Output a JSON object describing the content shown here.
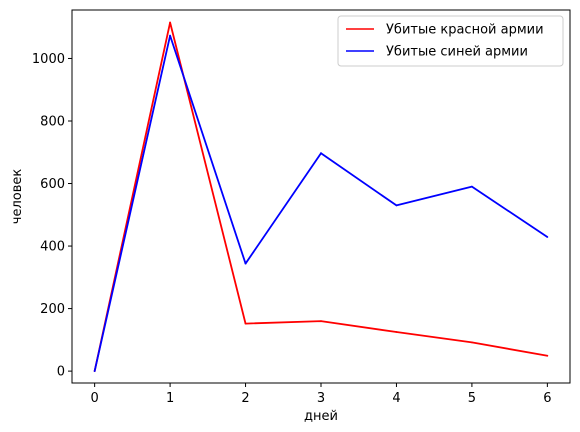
{
  "chart_data": {
    "type": "line",
    "title": "",
    "xlabel": "дней",
    "ylabel": "человек",
    "x": [
      0,
      1,
      2,
      3,
      4,
      5,
      6
    ],
    "xlim": [
      -0.3,
      6.3
    ],
    "ylim": [
      -38,
      1155
    ],
    "xticks": [
      0,
      1,
      2,
      3,
      4,
      5,
      6
    ],
    "yticks": [
      0,
      200,
      400,
      600,
      800,
      1000
    ],
    "grid": false,
    "legend_position": "top-right",
    "series": [
      {
        "name": "Убитые красной армии",
        "color": "#ff0000",
        "values": [
          0,
          1115,
          152,
          160,
          125,
          92,
          49
        ]
      },
      {
        "name": "Убитые синей армии",
        "color": "#0000ff",
        "values": [
          0,
          1073,
          344,
          697,
          530,
          590,
          429
        ]
      }
    ]
  }
}
